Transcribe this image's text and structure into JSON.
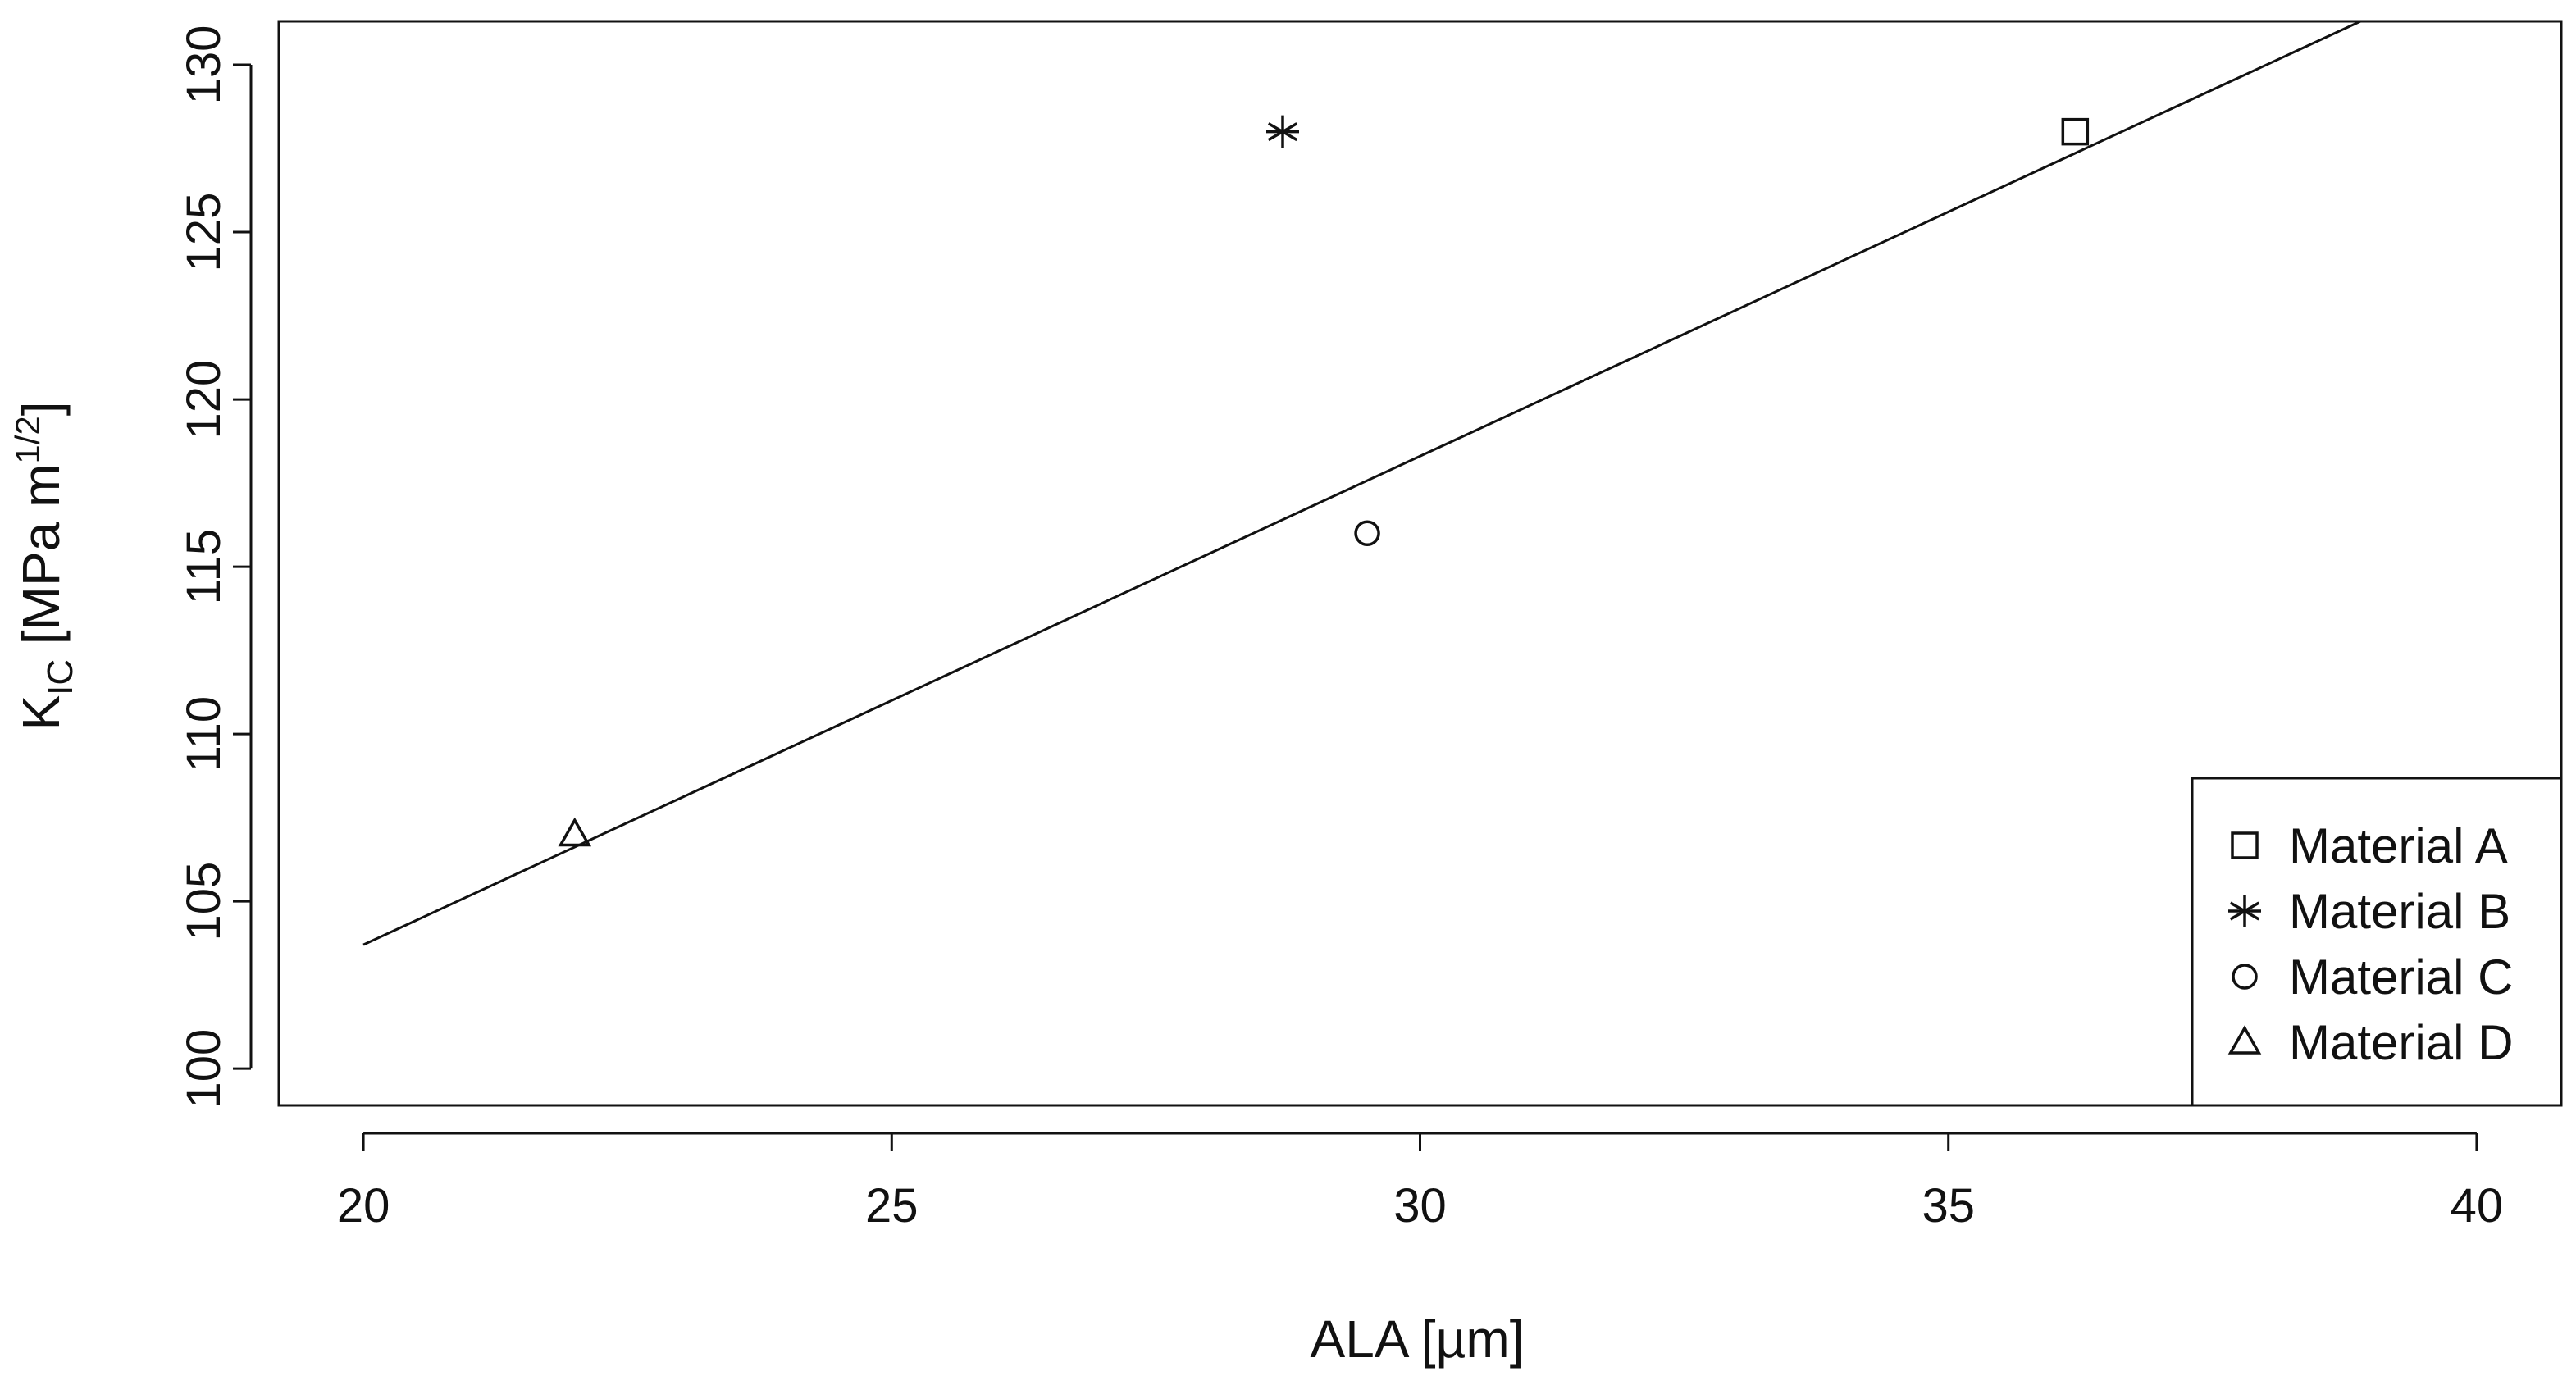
{
  "chart_data": {
    "type": "scatter",
    "xlabel": "ALA [µm]",
    "ylabel": {
      "main": "K",
      "sub": "IC",
      "unit_pre": " [MPa m",
      "unit_sup": "1/2",
      "unit_post": "]"
    },
    "xlim": [
      19.2,
      40.8
    ],
    "ylim": [
      98.9,
      131.3
    ],
    "x_ticks": [
      20,
      25,
      30,
      35,
      40
    ],
    "y_ticks": [
      100,
      105,
      110,
      115,
      120,
      125,
      130
    ],
    "grid": false,
    "legend_position": "bottom-right",
    "series": [
      {
        "name": "Material A",
        "marker": "square",
        "x": [
          36.2
        ],
        "y": [
          128
        ]
      },
      {
        "name": "Material B",
        "marker": "asterisk",
        "x": [
          28.7
        ],
        "y": [
          128
        ]
      },
      {
        "name": "Material C",
        "marker": "circle",
        "x": [
          29.5
        ],
        "y": [
          116
        ]
      },
      {
        "name": "Material D",
        "marker": "triangle",
        "x": [
          22
        ],
        "y": [
          107
        ]
      }
    ],
    "fit_line": {
      "x": [
        20,
        38.9
      ],
      "y": [
        103.7,
        131.3
      ]
    }
  }
}
